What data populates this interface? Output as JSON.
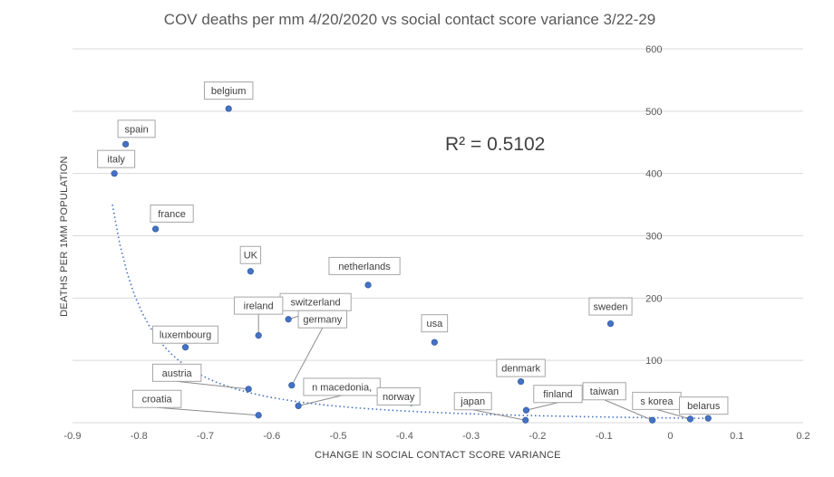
{
  "chart_data": {
    "type": "scatter",
    "title": "COV deaths per mm  4/20/2020 vs social contact score variance 3/22-29",
    "xlabel": "CHANGE  IN SOCIAL CONTACT  SCORE VARIANCE",
    "ylabel": "DEATHS PER 1MM POPULATION",
    "xlim": [
      -0.9,
      0.2
    ],
    "ylim": [
      0,
      600
    ],
    "x_ticks": [
      "-0.9",
      "-0.8",
      "-0.7",
      "-0.6",
      "-0.5",
      "-0.4",
      "-0.3",
      "-0.2",
      "-0.1",
      "0",
      "0.1",
      "0.2"
    ],
    "y_ticks": [
      "100",
      "200",
      "300",
      "400",
      "500",
      "600"
    ],
    "grid": "horizontal",
    "y_axis_position": "right at x = 0",
    "annotation": "R² = 0.5102",
    "point_color": "#4472c4",
    "trendline": {
      "type": "power",
      "style": "dotted",
      "color": "#4472c4",
      "x_range": [
        -0.84,
        0.05
      ],
      "y_start": 350,
      "y_end": 7
    },
    "points": [
      {
        "label": "belgium",
        "x": -0.665,
        "y": 504
      },
      {
        "label": "spain",
        "x": -0.82,
        "y": 447
      },
      {
        "label": "italy",
        "x": -0.837,
        "y": 400
      },
      {
        "label": "france",
        "x": -0.775,
        "y": 311
      },
      {
        "label": "UK",
        "x": -0.632,
        "y": 243
      },
      {
        "label": "netherlands",
        "x": -0.455,
        "y": 221
      },
      {
        "label": "switzerland",
        "x": -0.575,
        "y": 166
      },
      {
        "label": "ireland",
        "x": -0.62,
        "y": 140
      },
      {
        "label": "luxembourg",
        "x": -0.73,
        "y": 121
      },
      {
        "label": "usa",
        "x": -0.355,
        "y": 129
      },
      {
        "label": "sweden",
        "x": -0.09,
        "y": 159
      },
      {
        "label": "germany",
        "x": -0.57,
        "y": 60
      },
      {
        "label": "austria",
        "x": -0.635,
        "y": 54
      },
      {
        "label": "denmark",
        "x": -0.225,
        "y": 66
      },
      {
        "label": "n macedonia,",
        "x": -0.56,
        "y": 27
      },
      {
        "label": "norway",
        "x": -0.39,
        "y": 32
      },
      {
        "label": "croatia",
        "x": -0.62,
        "y": 12
      },
      {
        "label": "japan",
        "x": -0.218,
        "y": 4
      },
      {
        "label": "finland",
        "x": -0.217,
        "y": 20
      },
      {
        "label": "taiwan",
        "x": -0.027,
        "y": 4
      },
      {
        "label": "s korea",
        "x": 0.03,
        "y": 6
      },
      {
        "label": "belarus",
        "x": 0.057,
        "y": 7
      }
    ]
  }
}
